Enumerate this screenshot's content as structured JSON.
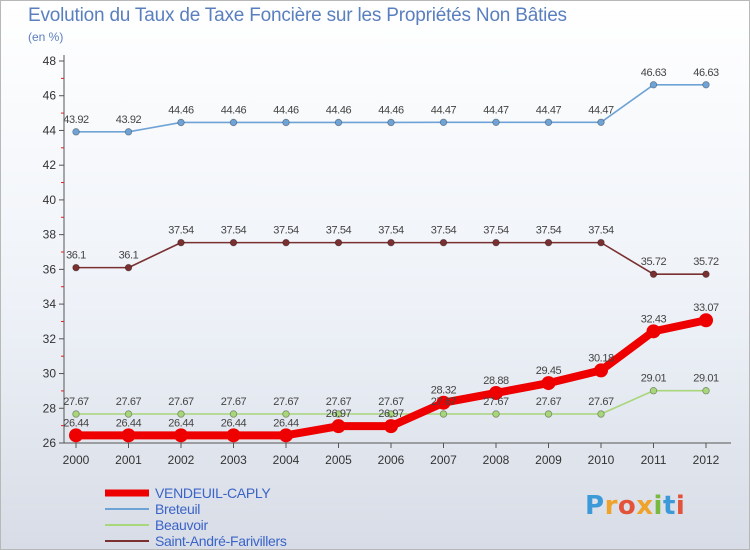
{
  "title": "Evolution du Taux de Taxe Foncière sur les Propriétés Non Bâties",
  "unit_label": "(en %)",
  "logo": {
    "text": "Proxiti"
  },
  "chart_data": {
    "type": "line",
    "title": "Evolution du Taux de Taxe Foncière sur les Propriétés Non Bâties",
    "ylabel": "(en %)",
    "xlabel": "",
    "ylim": [
      26,
      48
    ],
    "yticks": [
      26,
      28,
      30,
      32,
      34,
      36,
      38,
      40,
      42,
      44,
      46,
      48
    ],
    "grid": false,
    "legend_position": "bottom-left",
    "categories": [
      "2000",
      "2001",
      "2002",
      "2003",
      "2004",
      "2005",
      "2006",
      "2007",
      "2008",
      "2009",
      "2010",
      "2011",
      "2012"
    ],
    "series": [
      {
        "name": "VENDEUIL-CAPLY",
        "color": "#ee0000",
        "values": [
          26.44,
          26.44,
          26.44,
          26.44,
          26.44,
          26.97,
          26.97,
          28.32,
          28.88,
          29.45,
          30.18,
          32.43,
          33.07
        ],
        "labels": [
          "26.44",
          "26.44",
          "26.44",
          "26.44",
          "26.44",
          "26.97",
          "26.97",
          "28.32",
          "28.88",
          "29.45",
          "30.18",
          "32.43",
          "33.07"
        ]
      },
      {
        "name": "Breteuil",
        "color": "#6fa3d6",
        "values": [
          43.92,
          43.92,
          44.46,
          44.46,
          44.46,
          44.46,
          44.46,
          44.47,
          44.47,
          44.47,
          44.47,
          46.63,
          46.63
        ],
        "labels": [
          "43.92",
          "43.92",
          "44.46",
          "44.46",
          "44.46",
          "44.46",
          "44.46",
          "44.47",
          "44.47",
          "44.47",
          "44.47",
          "46.63",
          "46.63"
        ]
      },
      {
        "name": "Beauvoir",
        "color": "#a8d67a",
        "values": [
          27.67,
          27.67,
          27.67,
          27.67,
          27.67,
          27.67,
          27.67,
          27.67,
          27.67,
          27.67,
          27.67,
          29.01,
          29.01
        ],
        "labels": [
          "27.67",
          "27.67",
          "27.67",
          "27.67",
          "27.67",
          "27.67",
          "27.67",
          "27.67",
          "27.67",
          "27.67",
          "27.67",
          "29.01",
          "29.01"
        ]
      },
      {
        "name": "Saint-André-Farivillers",
        "color": "#7a3030",
        "values": [
          36.1,
          36.1,
          37.54,
          37.54,
          37.54,
          37.54,
          37.54,
          37.54,
          37.54,
          37.54,
          37.54,
          35.72,
          35.72
        ],
        "labels": [
          "36.1",
          "36.1",
          "37.54",
          "37.54",
          "37.54",
          "37.54",
          "37.54",
          "37.54",
          "37.54",
          "37.54",
          "37.54",
          "35.72",
          "35.72"
        ]
      }
    ]
  }
}
